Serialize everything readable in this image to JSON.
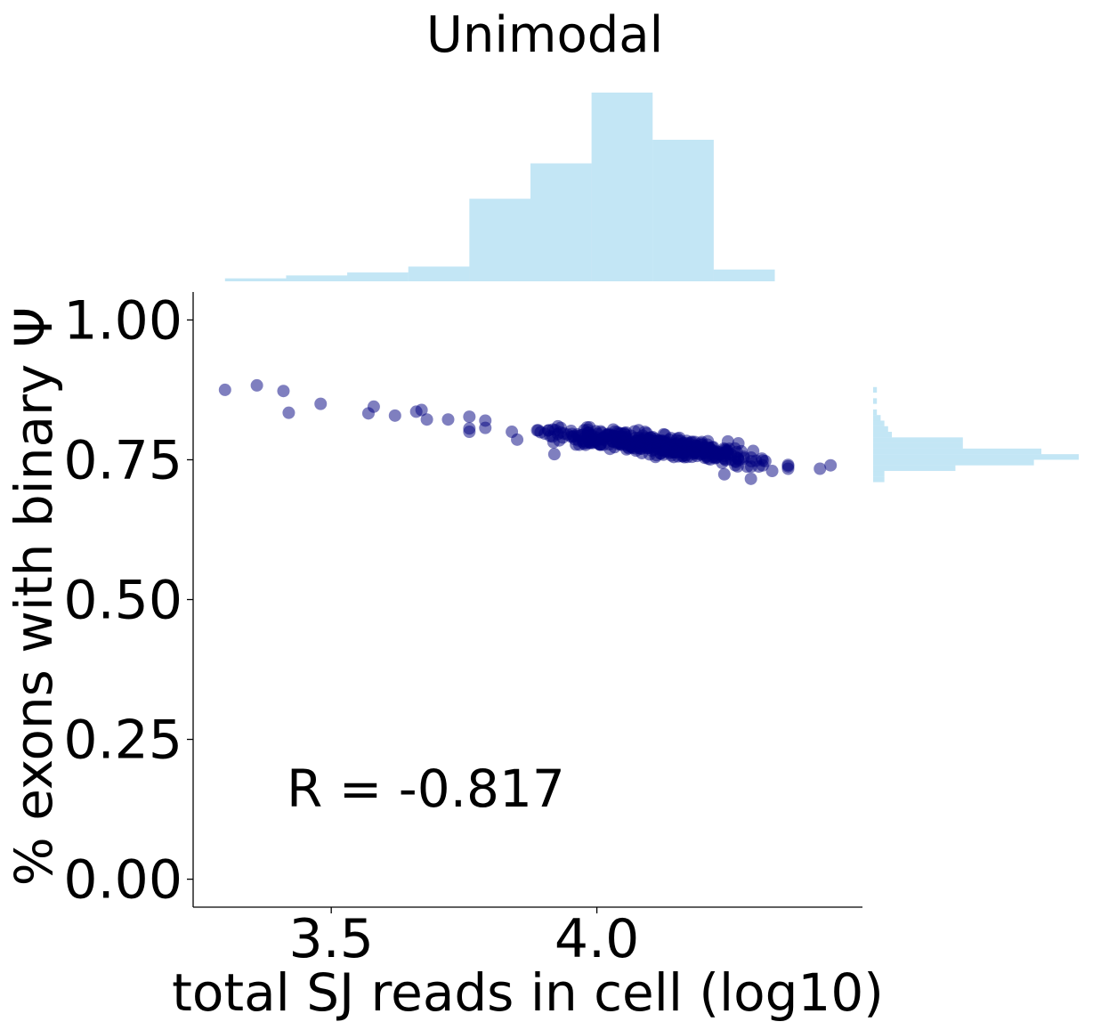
{
  "colors": {
    "scatter": "#000080",
    "histogram": "#87ceeb"
  },
  "chart_data": {
    "type": "scatter",
    "title": "Unimodal",
    "xlabel": "total SJ reads in cell (log10)",
    "ylabel": "% exons with binary Ψ",
    "xlim": [
      3.24,
      4.5
    ],
    "ylim": [
      -0.05,
      1.05
    ],
    "xticks": [
      {
        "value": 3.5,
        "label": "3.5"
      },
      {
        "value": 4.0,
        "label": "4.0"
      }
    ],
    "yticks": [
      {
        "value": 0.0,
        "label": "0.00"
      },
      {
        "value": 0.25,
        "label": "0.25"
      },
      {
        "value": 0.5,
        "label": "0.50"
      },
      {
        "value": 0.75,
        "label": "0.75"
      },
      {
        "value": 1.0,
        "label": "1.00"
      }
    ],
    "annotation": "R = -0.817",
    "outlier_points": [
      {
        "x": 3.3,
        "y": 0.875
      },
      {
        "x": 3.36,
        "y": 0.883
      },
      {
        "x": 3.41,
        "y": 0.873
      },
      {
        "x": 3.42,
        "y": 0.834
      },
      {
        "x": 3.48,
        "y": 0.85
      },
      {
        "x": 3.57,
        "y": 0.833
      },
      {
        "x": 3.58,
        "y": 0.845
      },
      {
        "x": 3.62,
        "y": 0.829
      },
      {
        "x": 3.66,
        "y": 0.836
      },
      {
        "x": 3.67,
        "y": 0.839
      },
      {
        "x": 3.68,
        "y": 0.822
      },
      {
        "x": 3.72,
        "y": 0.822
      },
      {
        "x": 3.76,
        "y": 0.827
      },
      {
        "x": 3.76,
        "y": 0.8
      },
      {
        "x": 3.76,
        "y": 0.806
      },
      {
        "x": 3.79,
        "y": 0.82
      },
      {
        "x": 3.79,
        "y": 0.807
      },
      {
        "x": 3.84,
        "y": 0.8
      },
      {
        "x": 3.85,
        "y": 0.786
      },
      {
        "x": 4.42,
        "y": 0.734
      },
      {
        "x": 4.44,
        "y": 0.74
      },
      {
        "x": 4.36,
        "y": 0.734
      },
      {
        "x": 4.33,
        "y": 0.73
      },
      {
        "x": 3.92,
        "y": 0.76
      },
      {
        "x": 4.29,
        "y": 0.716
      },
      {
        "x": 4.24,
        "y": 0.724
      }
    ],
    "cluster": {
      "n_points": 430,
      "x_range": [
        3.85,
        4.36
      ],
      "trend": {
        "slope": -0.11,
        "intercept_at_x": 3.85,
        "y_at_intercept": 0.805
      },
      "y_spread": 0.028
    },
    "x_histogram": {
      "bin_edges": [
        3.3,
        3.415,
        3.53,
        3.645,
        3.76,
        3.875,
        3.99,
        4.105,
        4.22,
        4.335,
        4.45
      ],
      "counts": [
        1,
        2,
        3,
        5,
        28,
        40,
        64,
        48,
        4,
        0
      ],
      "max_count": 64
    },
    "y_histogram": {
      "bin_edges": [
        0.71,
        0.72,
        0.73,
        0.74,
        0.75,
        0.76,
        0.77,
        0.78,
        0.79,
        0.8,
        0.81,
        0.82,
        0.83,
        0.84,
        0.85,
        0.86,
        0.87,
        0.88
      ],
      "counts": [
        3,
        3,
        22,
        43,
        55,
        45,
        24,
        24,
        5,
        4,
        3,
        2,
        1,
        0,
        1,
        0,
        1
      ],
      "max_count": 55
    }
  }
}
